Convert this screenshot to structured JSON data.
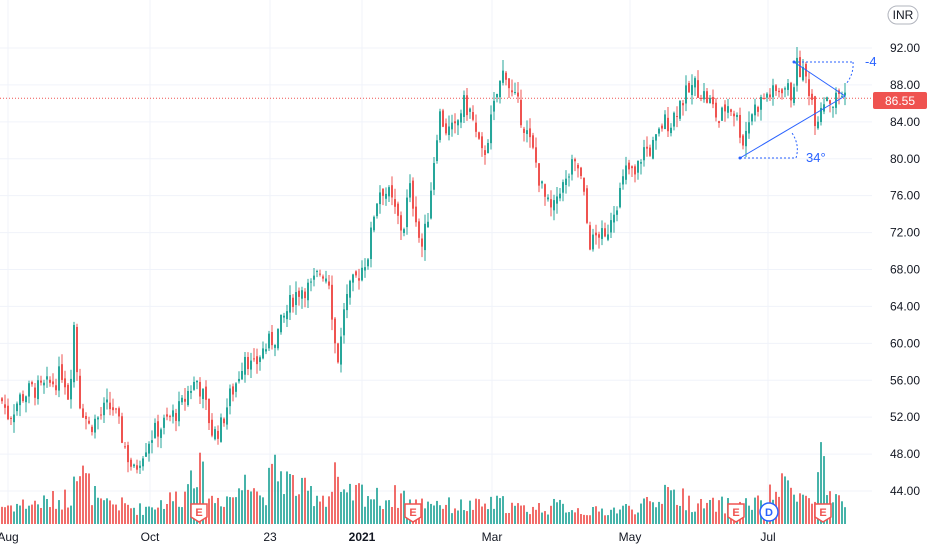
{
  "currency": "INR",
  "last_price": "86.55",
  "colors": {
    "up": "#26a69a",
    "down": "#ef5350",
    "drawing": "#2962ff",
    "grid": "#f0f3fa",
    "event_badge": "#ef5350",
    "dividend_badge": "#2962ff"
  },
  "angle_labels": {
    "upper": "-4",
    "lower": "34°"
  },
  "chart_data": {
    "type": "candlestick",
    "y_ticks": [
      "92.00",
      "88.00",
      "84.00",
      "80.00",
      "76.00",
      "72.00",
      "68.00",
      "64.00",
      "60.00",
      "56.00",
      "52.00",
      "48.00",
      "44.00"
    ],
    "ylim": [
      40.3,
      94.3
    ],
    "x_labels": [
      {
        "label": "Aug",
        "bold": false
      },
      {
        "label": "Oct",
        "bold": false
      },
      {
        "label": "23",
        "bold": false
      },
      {
        "label": "2021",
        "bold": true
      },
      {
        "label": "Mar",
        "bold": false
      },
      {
        "label": "May",
        "bold": false
      },
      {
        "label": "Jul",
        "bold": false
      }
    ],
    "price_path": [
      [
        0,
        54
      ],
      [
        8,
        52
      ],
      [
        18,
        54
      ],
      [
        30,
        55
      ],
      [
        40,
        55
      ],
      [
        55,
        56
      ],
      [
        62,
        57
      ],
      [
        68,
        54
      ],
      [
        73,
        62
      ],
      [
        78,
        54
      ],
      [
        88,
        51
      ],
      [
        98,
        52
      ],
      [
        105,
        53
      ],
      [
        112,
        53
      ],
      [
        118,
        51
      ],
      [
        126,
        48
      ],
      [
        133,
        46
      ],
      [
        140,
        48
      ],
      [
        150,
        50
      ],
      [
        160,
        51
      ],
      [
        170,
        52
      ],
      [
        180,
        53
      ],
      [
        188,
        55
      ],
      [
        196,
        56
      ],
      [
        203,
        54
      ],
      [
        212,
        50
      ],
      [
        220,
        51
      ],
      [
        228,
        54
      ],
      [
        236,
        56
      ],
      [
        244,
        59
      ],
      [
        252,
        57
      ],
      [
        260,
        59
      ],
      [
        268,
        60
      ],
      [
        276,
        61
      ],
      [
        284,
        63
      ],
      [
        292,
        65
      ],
      [
        300,
        66
      ],
      [
        310,
        66
      ],
      [
        320,
        68
      ],
      [
        328,
        67
      ],
      [
        334,
        60
      ],
      [
        338,
        58
      ],
      [
        343,
        64
      ],
      [
        350,
        66
      ],
      [
        360,
        68
      ],
      [
        368,
        70
      ],
      [
        374,
        75
      ],
      [
        380,
        77
      ],
      [
        388,
        76
      ],
      [
        395,
        74
      ],
      [
        402,
        72
      ],
      [
        408,
        77
      ],
      [
        415,
        74
      ],
      [
        420,
        70
      ],
      [
        426,
        73
      ],
      [
        432,
        79
      ],
      [
        438,
        85
      ],
      [
        446,
        83
      ],
      [
        454,
        83
      ],
      [
        462,
        86
      ],
      [
        470,
        85
      ],
      [
        476,
        82
      ],
      [
        482,
        80
      ],
      [
        488,
        83
      ],
      [
        496,
        87
      ],
      [
        504,
        90
      ],
      [
        510,
        87
      ],
      [
        516,
        86
      ],
      [
        522,
        84
      ],
      [
        528,
        82
      ],
      [
        534,
        80
      ],
      [
        540,
        77
      ],
      [
        546,
        75
      ],
      [
        552,
        74
      ],
      [
        558,
        77
      ],
      [
        564,
        77
      ],
      [
        570,
        79
      ],
      [
        578,
        79
      ],
      [
        584,
        75
      ],
      [
        588,
        71
      ],
      [
        592,
        71
      ],
      [
        598,
        72
      ],
      [
        604,
        71
      ],
      [
        610,
        74
      ],
      [
        618,
        76
      ],
      [
        626,
        79
      ],
      [
        634,
        78
      ],
      [
        642,
        81
      ],
      [
        650,
        81
      ],
      [
        656,
        82
      ],
      [
        662,
        84
      ],
      [
        670,
        84
      ],
      [
        678,
        86
      ],
      [
        686,
        87
      ],
      [
        694,
        88
      ],
      [
        702,
        87
      ],
      [
        710,
        86
      ],
      [
        718,
        84
      ],
      [
        726,
        86
      ],
      [
        734,
        85
      ],
      [
        742,
        82
      ],
      [
        750,
        85
      ],
      [
        758,
        86
      ],
      [
        766,
        87
      ],
      [
        774,
        87
      ],
      [
        782,
        88
      ],
      [
        790,
        87
      ],
      [
        796,
        90
      ],
      [
        804,
        89
      ],
      [
        810,
        87
      ],
      [
        815,
        84
      ],
      [
        820,
        86
      ],
      [
        826,
        87
      ],
      [
        832,
        86
      ],
      [
        838,
        87
      ],
      [
        845,
        87
      ]
    ],
    "volume_path": [
      [
        0,
        0.3
      ],
      [
        40,
        0.35
      ],
      [
        70,
        0.45
      ],
      [
        73,
        1.3
      ],
      [
        78,
        0.9
      ],
      [
        100,
        0.3
      ],
      [
        110,
        0.35
      ],
      [
        140,
        0.25
      ],
      [
        186,
        0.5
      ],
      [
        190,
        1.2
      ],
      [
        210,
        0.4
      ],
      [
        240,
        0.5
      ],
      [
        245,
        1.1
      ],
      [
        260,
        0.4
      ],
      [
        275,
        0.9
      ],
      [
        300,
        0.55
      ],
      [
        330,
        0.45
      ],
      [
        334,
        1.0
      ],
      [
        340,
        0.4
      ],
      [
        360,
        0.55
      ],
      [
        380,
        0.4
      ],
      [
        405,
        0.5
      ],
      [
        412,
        0.3
      ],
      [
        430,
        0.4
      ],
      [
        450,
        0.3
      ],
      [
        480,
        0.3
      ],
      [
        500,
        0.35
      ],
      [
        520,
        0.25
      ],
      [
        560,
        0.3
      ],
      [
        590,
        0.2
      ],
      [
        620,
        0.25
      ],
      [
        660,
        0.35
      ],
      [
        664,
        0.9
      ],
      [
        670,
        0.5
      ],
      [
        700,
        0.3
      ],
      [
        760,
        0.35
      ],
      [
        794,
        0.75
      ],
      [
        800,
        0.45
      ],
      [
        815,
        0.35
      ],
      [
        820,
        1.4
      ],
      [
        826,
        0.4
      ],
      [
        845,
        0.3
      ]
    ],
    "event_markers": [
      {
        "x_pos": "near Oct",
        "letter": "E"
      },
      {
        "x_pos": "near 2021",
        "letter": "E"
      },
      {
        "x_pos": "before Jul",
        "letter": "E"
      },
      {
        "x_pos": "at Jul",
        "letter": "D"
      },
      {
        "x_pos": "after Jul",
        "letter": "E"
      }
    ]
  }
}
